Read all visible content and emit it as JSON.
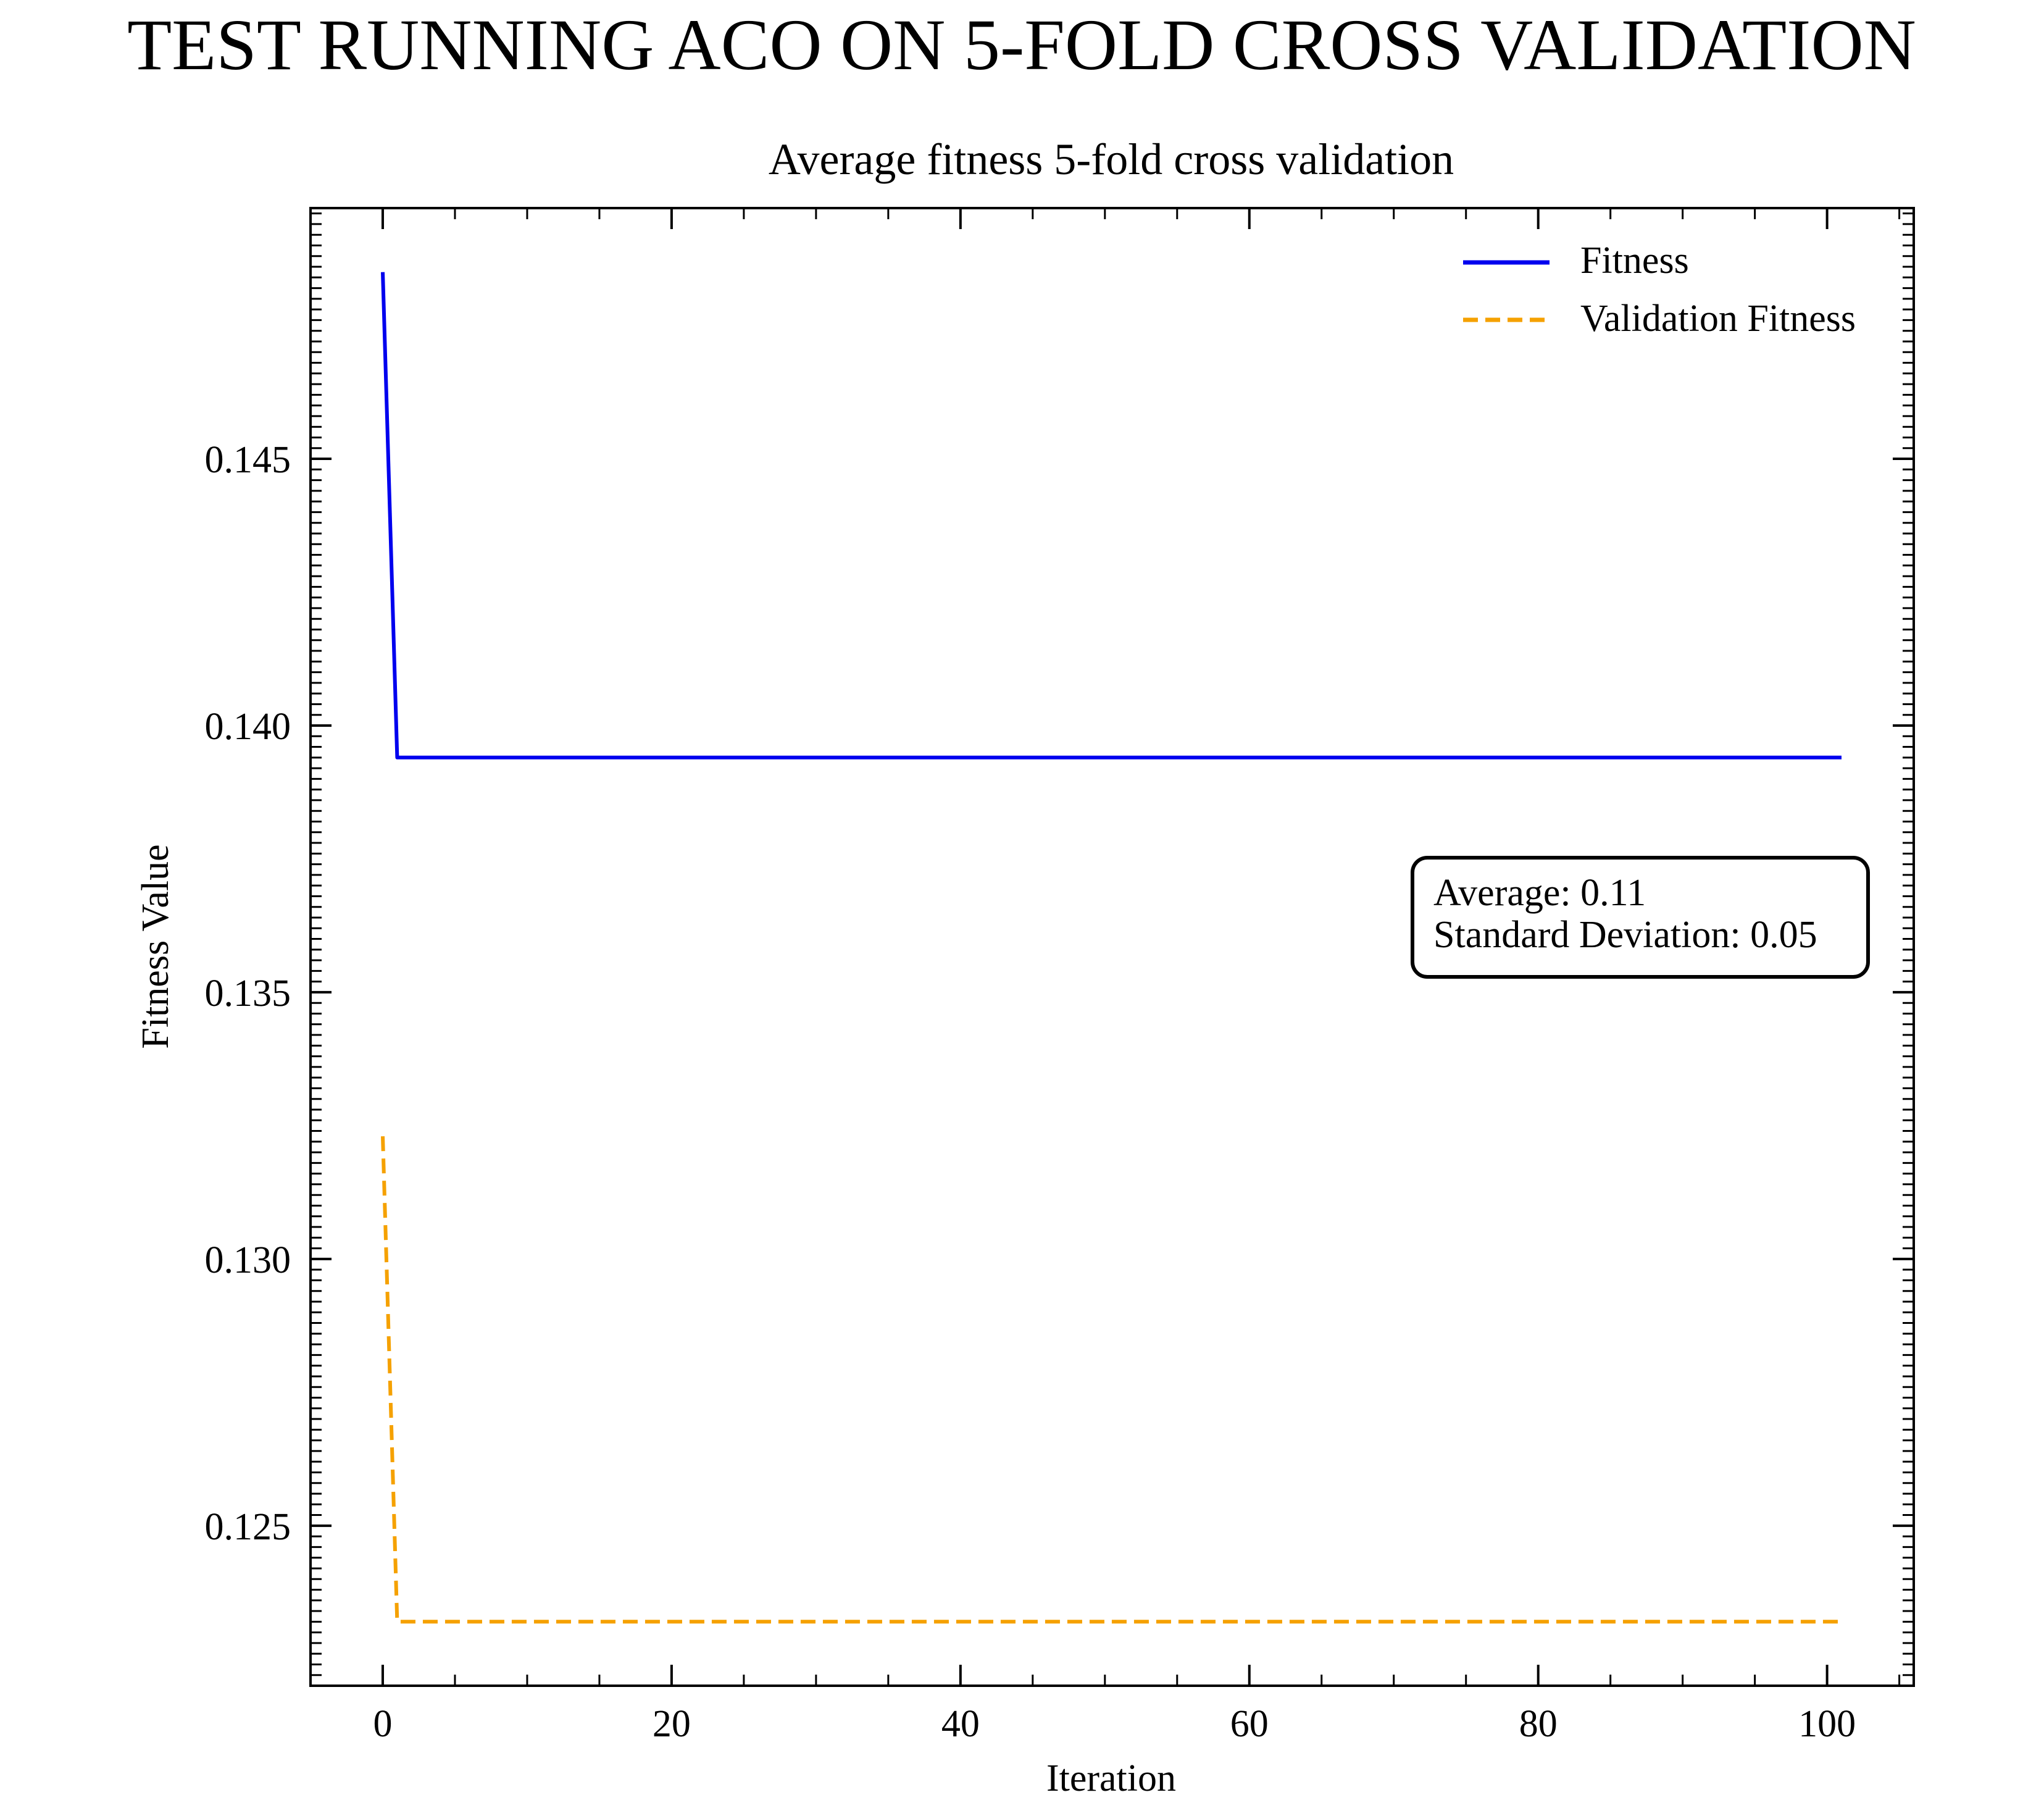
{
  "suptitle": "TEST RUNNING ACO ON 5-FOLD CROSS VALIDATION",
  "chart_data": {
    "type": "line",
    "title": "Average fitness 5-fold cross validation",
    "xlabel": "Iteration",
    "ylabel": "Fitness Value",
    "xlim": [
      -5,
      106
    ],
    "ylim": [
      0.122,
      0.1497
    ],
    "xticks": [
      0,
      20,
      40,
      60,
      80,
      100
    ],
    "xtick_labels": [
      "0",
      "20",
      "40",
      "60",
      "80",
      "100"
    ],
    "yticks": [
      0.125,
      0.13,
      0.135,
      0.14,
      0.145
    ],
    "ytick_labels": [
      "0.125",
      "0.130",
      "0.135",
      "0.140",
      "0.145"
    ],
    "grid": false,
    "legend_position": "top-right",
    "series": [
      {
        "name": "Fitness",
        "color": "#0000ee",
        "style": "solid",
        "x": [
          0,
          1,
          101
        ],
        "y": [
          0.1485,
          0.1394,
          0.1394
        ]
      },
      {
        "name": "Validation Fitness",
        "color": "#f5a100",
        "style": "dashed",
        "x": [
          0,
          1,
          101
        ],
        "y": [
          0.1323,
          0.1232,
          0.1232
        ]
      }
    ],
    "annotation": {
      "lines": [
        "Average: 0.11",
        "Standard Deviation: 0.05"
      ]
    }
  }
}
